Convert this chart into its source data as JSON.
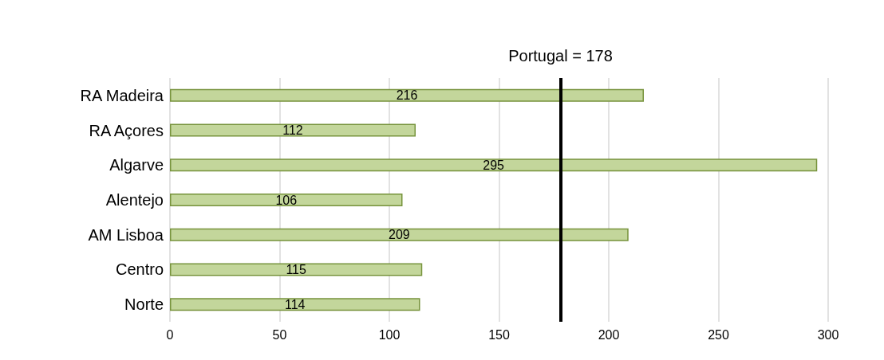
{
  "chart_data": {
    "type": "bar",
    "orientation": "horizontal",
    "categories": [
      "RA Madeira",
      "RA Açores",
      "Algarve",
      "Alentejo",
      "AM Lisboa",
      "Centro",
      "Norte"
    ],
    "series": [
      {
        "color": "#c3d69b",
        "values": [
          216,
          112,
          295,
          106,
          209,
          115,
          114
        ]
      }
    ],
    "xlim": [
      0,
      300
    ],
    "xticks": [
      0,
      50,
      100,
      150,
      200,
      250,
      300
    ],
    "grid": "x",
    "data_labels": true,
    "ref_lines": [
      {
        "axis": "x",
        "value": 178,
        "label": "Portugal = 178",
        "color": "#000000",
        "line_style": "solid"
      }
    ]
  }
}
